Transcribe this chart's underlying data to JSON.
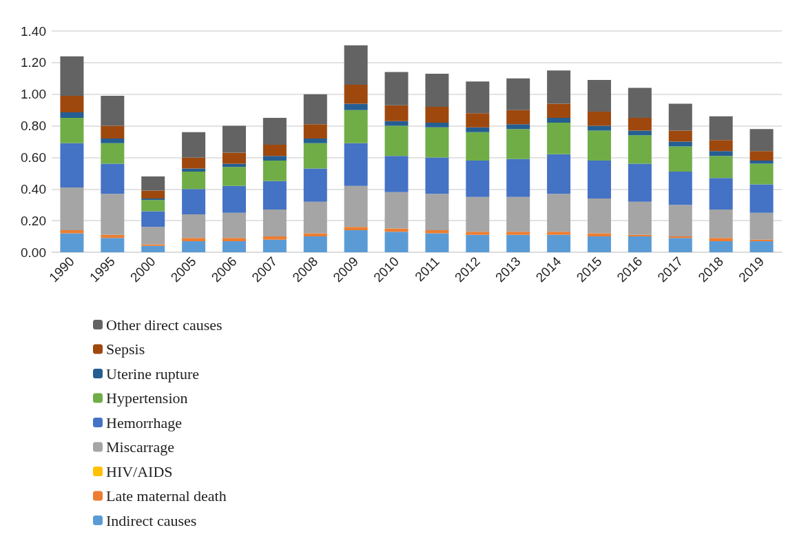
{
  "chart_data": {
    "type": "bar",
    "stacked": true,
    "categories": [
      "1990",
      "1995",
      "2000",
      "2005",
      "2006",
      "2007",
      "2008",
      "2009",
      "2010",
      "2011",
      "2012",
      "2013",
      "2014",
      "2015",
      "2016",
      "2017",
      "2018",
      "2019"
    ],
    "series": [
      {
        "name": "Indirect causes",
        "color": "#5b9bd5",
        "values": [
          0.12,
          0.09,
          0.04,
          0.07,
          0.07,
          0.08,
          0.1,
          0.14,
          0.13,
          0.12,
          0.11,
          0.11,
          0.11,
          0.1,
          0.1,
          0.09,
          0.07,
          0.07
        ]
      },
      {
        "name": "Late maternal death",
        "color": "#ed7d31",
        "values": [
          0.02,
          0.02,
          0.01,
          0.02,
          0.02,
          0.02,
          0.02,
          0.02,
          0.02,
          0.02,
          0.02,
          0.02,
          0.02,
          0.02,
          0.01,
          0.01,
          0.02,
          0.01
        ]
      },
      {
        "name": "HIV/AIDS",
        "color": "#ffc000",
        "values": [
          0,
          0,
          0,
          0,
          0,
          0,
          0,
          0,
          0,
          0,
          0,
          0,
          0,
          0,
          0,
          0,
          0,
          0
        ]
      },
      {
        "name": "Miscarrage",
        "color": "#a5a5a5",
        "values": [
          0.27,
          0.26,
          0.11,
          0.15,
          0.16,
          0.17,
          0.2,
          0.26,
          0.23,
          0.23,
          0.22,
          0.22,
          0.24,
          0.22,
          0.21,
          0.2,
          0.18,
          0.17
        ]
      },
      {
        "name": "Hemorrhage",
        "color": "#4472c4",
        "values": [
          0.28,
          0.19,
          0.1,
          0.16,
          0.17,
          0.18,
          0.21,
          0.27,
          0.23,
          0.23,
          0.23,
          0.24,
          0.25,
          0.24,
          0.24,
          0.21,
          0.2,
          0.18
        ]
      },
      {
        "name": "Hypertension",
        "color": "#70ad47",
        "values": [
          0.16,
          0.13,
          0.07,
          0.11,
          0.12,
          0.13,
          0.16,
          0.21,
          0.19,
          0.19,
          0.18,
          0.19,
          0.2,
          0.19,
          0.18,
          0.16,
          0.14,
          0.13
        ]
      },
      {
        "name": "Uterine rupture",
        "color": "#255e91",
        "values": [
          0.035,
          0.03,
          0.01,
          0.02,
          0.02,
          0.03,
          0.03,
          0.04,
          0.03,
          0.03,
          0.03,
          0.03,
          0.03,
          0.03,
          0.03,
          0.03,
          0.03,
          0.02
        ]
      },
      {
        "name": "Sepsis",
        "color": "#9e480e",
        "values": [
          0.105,
          0.08,
          0.05,
          0.07,
          0.07,
          0.07,
          0.09,
          0.12,
          0.1,
          0.1,
          0.09,
          0.09,
          0.09,
          0.09,
          0.08,
          0.07,
          0.07,
          0.06
        ]
      },
      {
        "name": "Other direct causes",
        "color": "#636363",
        "values": [
          0.25,
          0.19,
          0.09,
          0.16,
          0.17,
          0.17,
          0.19,
          0.25,
          0.21,
          0.21,
          0.2,
          0.2,
          0.21,
          0.2,
          0.19,
          0.17,
          0.15,
          0.14
        ]
      }
    ],
    "ylim": [
      0,
      1.4
    ],
    "yticks": [
      {
        "value": 0,
        "label": "0.00"
      },
      {
        "value": 0.2,
        "label": "0.20"
      },
      {
        "value": 0.4,
        "label": "0.40"
      },
      {
        "value": 0.6,
        "label": "0.60"
      },
      {
        "value": 0.8,
        "label": "0.80"
      },
      {
        "value": 1,
        "label": "1.00"
      },
      {
        "value": 1.2,
        "label": "1.20"
      },
      {
        "value": 1.4,
        "label": "1.40"
      }
    ],
    "grid": "y",
    "legend": "bottom"
  }
}
